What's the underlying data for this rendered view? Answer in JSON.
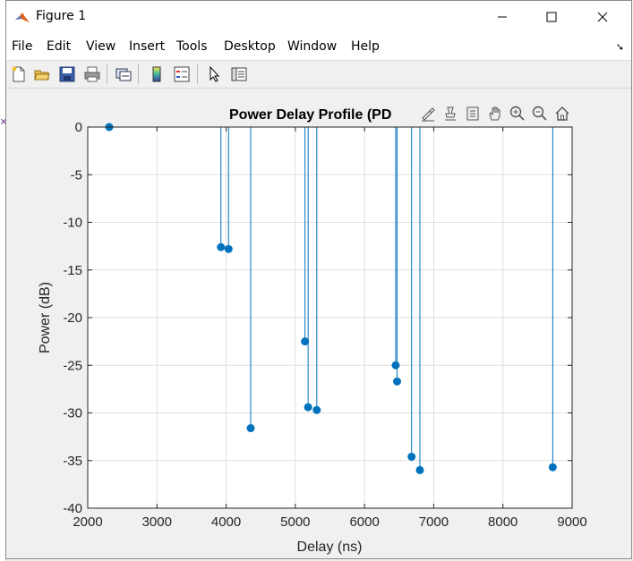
{
  "window": {
    "title": "Figure 1"
  },
  "menu": {
    "items": [
      "File",
      "Edit",
      "View",
      "Insert",
      "Tools",
      "Desktop",
      "Window",
      "Help"
    ]
  },
  "toolbar": {
    "icons": [
      "new-figure-icon",
      "open-icon",
      "save-icon",
      "print-icon",
      "link-plot-icon",
      "colorbar-icon",
      "legend-icon",
      "pointer-icon",
      "property-inspector-icon"
    ]
  },
  "axes_toolbar": {
    "icons": [
      "brush-icon",
      "data-tips-icon",
      "datacursor-icon",
      "pan-icon",
      "zoom-in-icon",
      "zoom-out-icon",
      "home-icon"
    ]
  },
  "chart_data": {
    "type": "stem",
    "title": "Power Delay Profile (PD",
    "xlabel": "Delay (ns)",
    "ylabel": "Power (dB)",
    "xlim": [
      2000,
      9000
    ],
    "ylim": [
      -40,
      0
    ],
    "xticks": [
      2000,
      3000,
      4000,
      5000,
      6000,
      7000,
      8000,
      9000
    ],
    "yticks": [
      0,
      -5,
      -10,
      -15,
      -20,
      -25,
      -30,
      -35,
      -40
    ],
    "grid": true,
    "color": "#0072bd",
    "x": [
      2310,
      3925,
      4035,
      4355,
      5140,
      5185,
      5310,
      6450,
      6470,
      6680,
      6800,
      8720
    ],
    "y": [
      0,
      -12.6,
      -12.8,
      -31.6,
      -22.5,
      -29.4,
      -29.7,
      -25.0,
      -26.7,
      -34.6,
      -36.0,
      -35.7
    ]
  }
}
